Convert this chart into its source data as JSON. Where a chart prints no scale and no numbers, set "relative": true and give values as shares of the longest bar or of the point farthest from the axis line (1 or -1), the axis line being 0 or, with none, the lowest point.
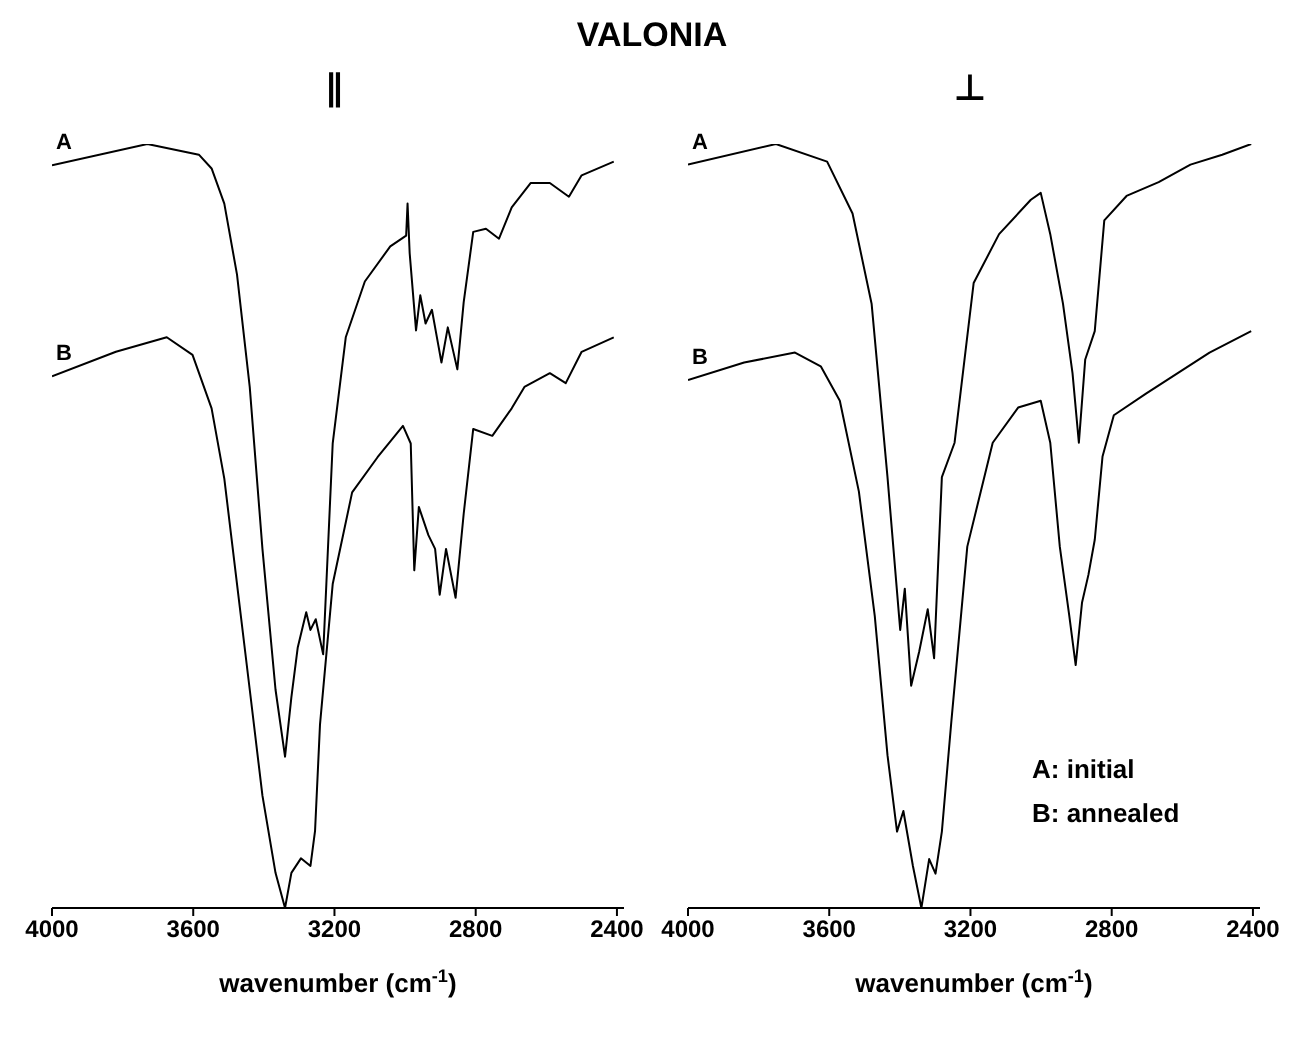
{
  "chart_data": [
    {
      "type": "line",
      "title": "∥",
      "xlabel": "wavenumber (cm$^{-1}$)",
      "relative": true,
      "marker": "none",
      "line_style": "solid",
      "annotations": [
        "VALONIA"
      ],
      "xlim": [
        4000,
        2380
      ],
      "xticks": [
        4000,
        3600,
        3200,
        2800,
        2400
      ],
      "series": [
        {
          "name": "A",
          "color": "#000000",
          "x": [
            4000,
            3730,
            3584,
            3548,
            3512,
            3476,
            3440,
            3404,
            3367,
            3340,
            3322,
            3304,
            3280,
            3268,
            3253,
            3232,
            3223,
            3205,
            3168,
            3114,
            3042,
            2997,
            2993,
            2987,
            2969,
            2957,
            2942,
            2924,
            2906,
            2897,
            2879,
            2852,
            2834,
            2807,
            2771,
            2734,
            2698,
            2644,
            2590,
            2536,
            2500,
            2409
          ],
          "values": [
            0.972,
            1.0,
            0.986,
            0.968,
            0.922,
            0.829,
            0.682,
            0.47,
            0.286,
            0.198,
            0.276,
            0.341,
            0.387,
            0.364,
            0.378,
            0.332,
            0.424,
            0.608,
            0.747,
            0.82,
            0.866,
            0.88,
            0.922,
            0.857,
            0.756,
            0.802,
            0.765,
            0.783,
            0.737,
            0.714,
            0.76,
            0.705,
            0.793,
            0.885,
            0.889,
            0.876,
            0.917,
            0.949,
            0.949,
            0.931,
            0.959,
            0.977
          ]
        },
        {
          "name": "B",
          "color": "#000000",
          "x": [
            4000,
            3819,
            3675,
            3602,
            3548,
            3512,
            3476,
            3440,
            3404,
            3367,
            3340,
            3322,
            3295,
            3268,
            3255,
            3241,
            3205,
            3150,
            3078,
            3006,
            2984,
            2974,
            2961,
            2934,
            2915,
            2902,
            2884,
            2857,
            2834,
            2807,
            2753,
            2698,
            2662,
            2590,
            2545,
            2500,
            2409
          ],
          "values": [
            0.696,
            0.728,
            0.747,
            0.724,
            0.654,
            0.562,
            0.424,
            0.286,
            0.147,
            0.046,
            0,
            0.046,
            0.065,
            0.055,
            0.101,
            0.24,
            0.424,
            0.544,
            0.59,
            0.631,
            0.608,
            0.442,
            0.525,
            0.488,
            0.47,
            0.41,
            0.47,
            0.406,
            0.516,
            0.627,
            0.618,
            0.654,
            0.682,
            0.7,
            0.687,
            0.728,
            0.747
          ]
        }
      ]
    },
    {
      "type": "line",
      "title": "⊥",
      "xlabel": "wavenumber (cm$^{-1}$)",
      "relative": true,
      "marker": "none",
      "line_style": "solid",
      "annotations": [
        "A: initial",
        "B: annealed"
      ],
      "xlim": [
        4000,
        2380
      ],
      "xticks": [
        4000,
        3600,
        3200,
        2800,
        2400
      ],
      "series": [
        {
          "name": "A",
          "color": "#000000",
          "x": [
            4000,
            3751,
            3606,
            3534,
            3480,
            3435,
            3399,
            3386,
            3368,
            3345,
            3321,
            3303,
            3281,
            3245,
            3191,
            3119,
            3029,
            3001,
            2974,
            2938,
            2911,
            2893,
            2875,
            2848,
            2821,
            2758,
            2667,
            2577,
            2487,
            2405
          ],
          "values": [
            0.973,
            1.0,
            0.977,
            0.909,
            0.791,
            0.564,
            0.364,
            0.418,
            0.291,
            0.336,
            0.391,
            0.327,
            0.564,
            0.609,
            0.818,
            0.882,
            0.927,
            0.936,
            0.882,
            0.791,
            0.7,
            0.609,
            0.718,
            0.755,
            0.9,
            0.932,
            0.95,
            0.973,
            0.986,
            1.0
          ]
        },
        {
          "name": "B",
          "color": "#000000",
          "x": [
            4000,
            3841,
            3697,
            3624,
            3570,
            3516,
            3471,
            3435,
            3408,
            3390,
            3363,
            3339,
            3317,
            3299,
            3281,
            3254,
            3209,
            3137,
            3065,
            3001,
            2974,
            2947,
            2920,
            2902,
            2884,
            2866,
            2848,
            2826,
            2794,
            2704,
            2613,
            2523,
            2405
          ],
          "values": [
            0.691,
            0.714,
            0.727,
            0.709,
            0.664,
            0.545,
            0.382,
            0.2,
            0.1,
            0.127,
            0.055,
            0,
            0.064,
            0.045,
            0.1,
            0.245,
            0.473,
            0.609,
            0.655,
            0.664,
            0.609,
            0.473,
            0.382,
            0.318,
            0.4,
            0.436,
            0.482,
            0.591,
            0.645,
            0.673,
            0.7,
            0.727,
            0.755
          ]
        }
      ]
    }
  ]
}
